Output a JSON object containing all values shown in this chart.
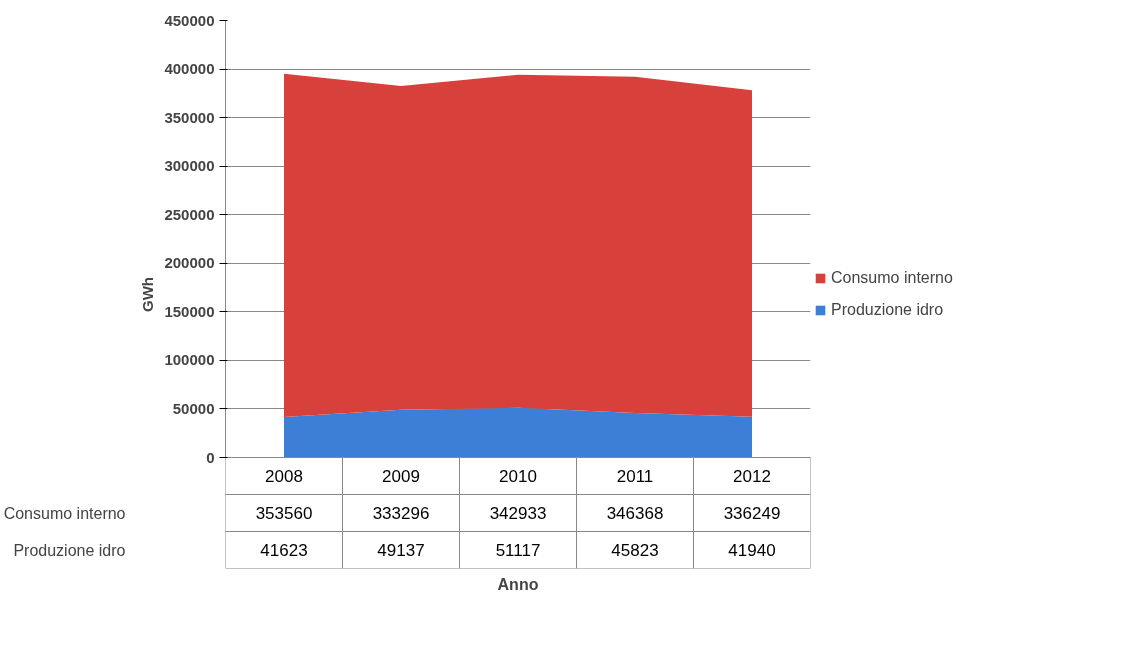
{
  "chart_data": {
    "type": "area",
    "stacked": true,
    "annotations": [
      "Anno"
    ],
    "ylabel": "GWh",
    "categories": [
      "2008",
      "2009",
      "2010",
      "2011",
      "2012"
    ],
    "series": [
      {
        "name": "Produzione idro",
        "color": "#3d7fd6",
        "values": [
          41623,
          49137,
          51117,
          45823,
          41940
        ]
      },
      {
        "name": "Consumo interno",
        "color": "#d8403b",
        "values": [
          353560,
          333296,
          342933,
          346368,
          336249
        ]
      }
    ],
    "ylim": [
      0,
      450000
    ],
    "yticks": [
      0,
      50000,
      100000,
      150000,
      200000,
      250000,
      300000,
      350000,
      400000,
      450000
    ],
    "grid": "y",
    "legend": "right",
    "data_labels": true
  }
}
